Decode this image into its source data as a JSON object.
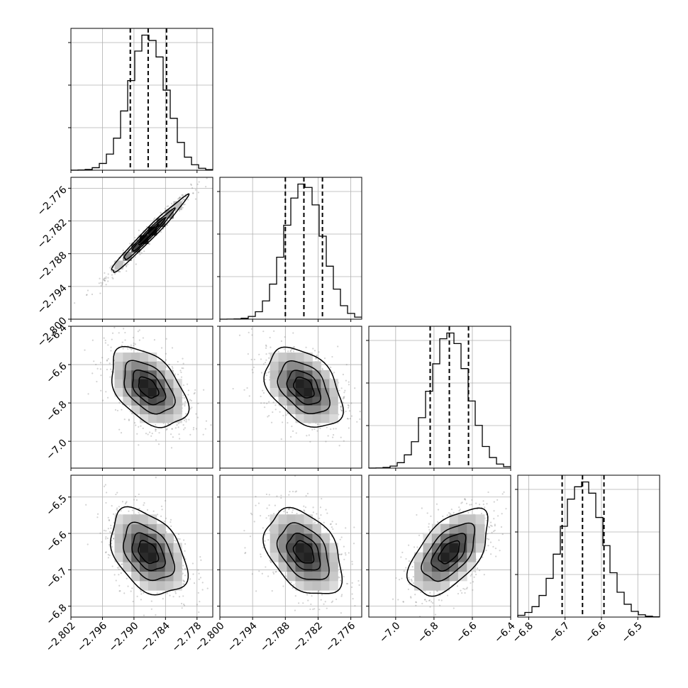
{
  "chart_data": {
    "type": "corner",
    "parameters": [
      {
        "range": [
          -2.802,
          -2.775
        ],
        "ticks": [
          -2.802,
          -2.796,
          -2.79,
          -2.784,
          -2.778
        ],
        "tick_labels": [
          "−2.802",
          "−2.796",
          "−2.790",
          "−2.784",
          "−2.778"
        ],
        "median": -2.7873,
        "q16": -2.7907,
        "q84": -2.7838,
        "sigma": 0.0035
      },
      {
        "range": [
          -2.8,
          -2.774
        ],
        "ticks": [
          -2.8,
          -2.794,
          -2.788,
          -2.782,
          -2.776
        ],
        "tick_labels": [
          "−2.800",
          "−2.794",
          "−2.788",
          "−2.782",
          "−2.776"
        ],
        "median": -2.7846,
        "q16": -2.788,
        "q84": -2.7812,
        "sigma": 0.0034
      },
      {
        "range": [
          -7.14,
          -6.4
        ],
        "ticks": [
          -7.0,
          -6.8,
          -6.6,
          -6.4
        ],
        "tick_labels": [
          "−7.0",
          "−6.8",
          "−6.6",
          "−6.4"
        ],
        "median": -6.72,
        "q16": -6.82,
        "q84": -6.62,
        "sigma": 0.1
      },
      {
        "range": [
          -6.83,
          -6.44
        ],
        "ticks": [
          -6.8,
          -6.7,
          -6.6,
          -6.5
        ],
        "tick_labels": [
          "−6.8",
          "−6.7",
          "−6.6",
          "−6.5"
        ],
        "median": -6.652,
        "q16": -6.708,
        "q84": -6.593,
        "sigma": 0.057
      }
    ],
    "correlations": {
      "1_0": 0.98,
      "2_0": -0.45,
      "2_1": -0.4,
      "3_0": -0.4,
      "3_1": -0.38,
      "3_2": 0.55
    },
    "quantiles": [
      0.16,
      0.5,
      0.84
    ],
    "grid": true,
    "histogram_bins": 20,
    "title": "",
    "xlabels": [
      "",
      "",
      "",
      ""
    ],
    "ylabels": [
      "",
      "",
      "",
      ""
    ]
  }
}
